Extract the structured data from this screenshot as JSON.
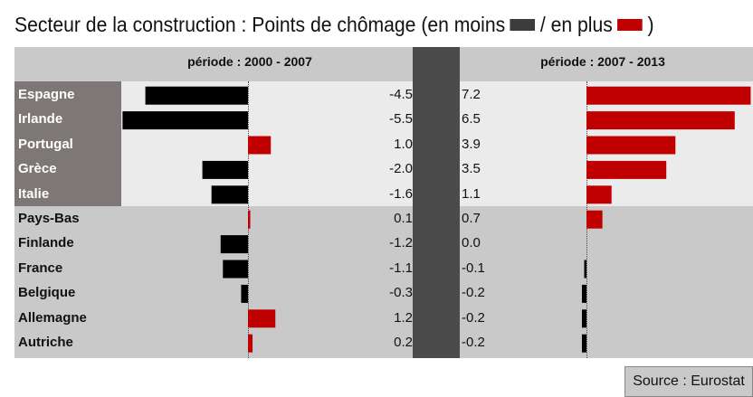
{
  "title": {
    "main": "Secteur de la construction : Points de chômage (en moins",
    "sep": "/ en plus",
    "end": ")"
  },
  "colors": {
    "minus": "#000000",
    "plus": "#c00000",
    "minus_swatch": "#3c3c3c",
    "plus_swatch": "#c00000"
  },
  "source": "Source : Eurostat",
  "chart_data": {
    "type": "bar",
    "categories": [
      "Espagne",
      "Irlande",
      "Portugal",
      "Grèce",
      "Italie",
      "Pays-Bas",
      "Finlande",
      "France",
      "Belgique",
      "Allemagne",
      "Autriche"
    ],
    "panels": [
      {
        "header": "période : 2000 - 2007",
        "values": [
          -4.5,
          -5.5,
          1.0,
          -2.0,
          -1.6,
          0.1,
          -1.2,
          -1.1,
          -0.3,
          1.2,
          0.2
        ],
        "labels": [
          "-4.5",
          "-5.5",
          "1.0",
          "-2.0",
          "-1.6",
          "0.1",
          "-1.2",
          "-1.1",
          "-0.3",
          "1.2",
          "0.2"
        ]
      },
      {
        "header": "période : 2007 - 2013",
        "values": [
          7.2,
          6.5,
          3.9,
          3.5,
          1.1,
          0.7,
          0.0,
          -0.1,
          -0.2,
          -0.2,
          -0.2
        ],
        "labels": [
          "7.2",
          "6.5",
          "3.9",
          "3.5",
          "1.1",
          "0.7",
          "0.0",
          "-0.1",
          "-0.2",
          "-0.2",
          "-0.2"
        ]
      }
    ]
  }
}
